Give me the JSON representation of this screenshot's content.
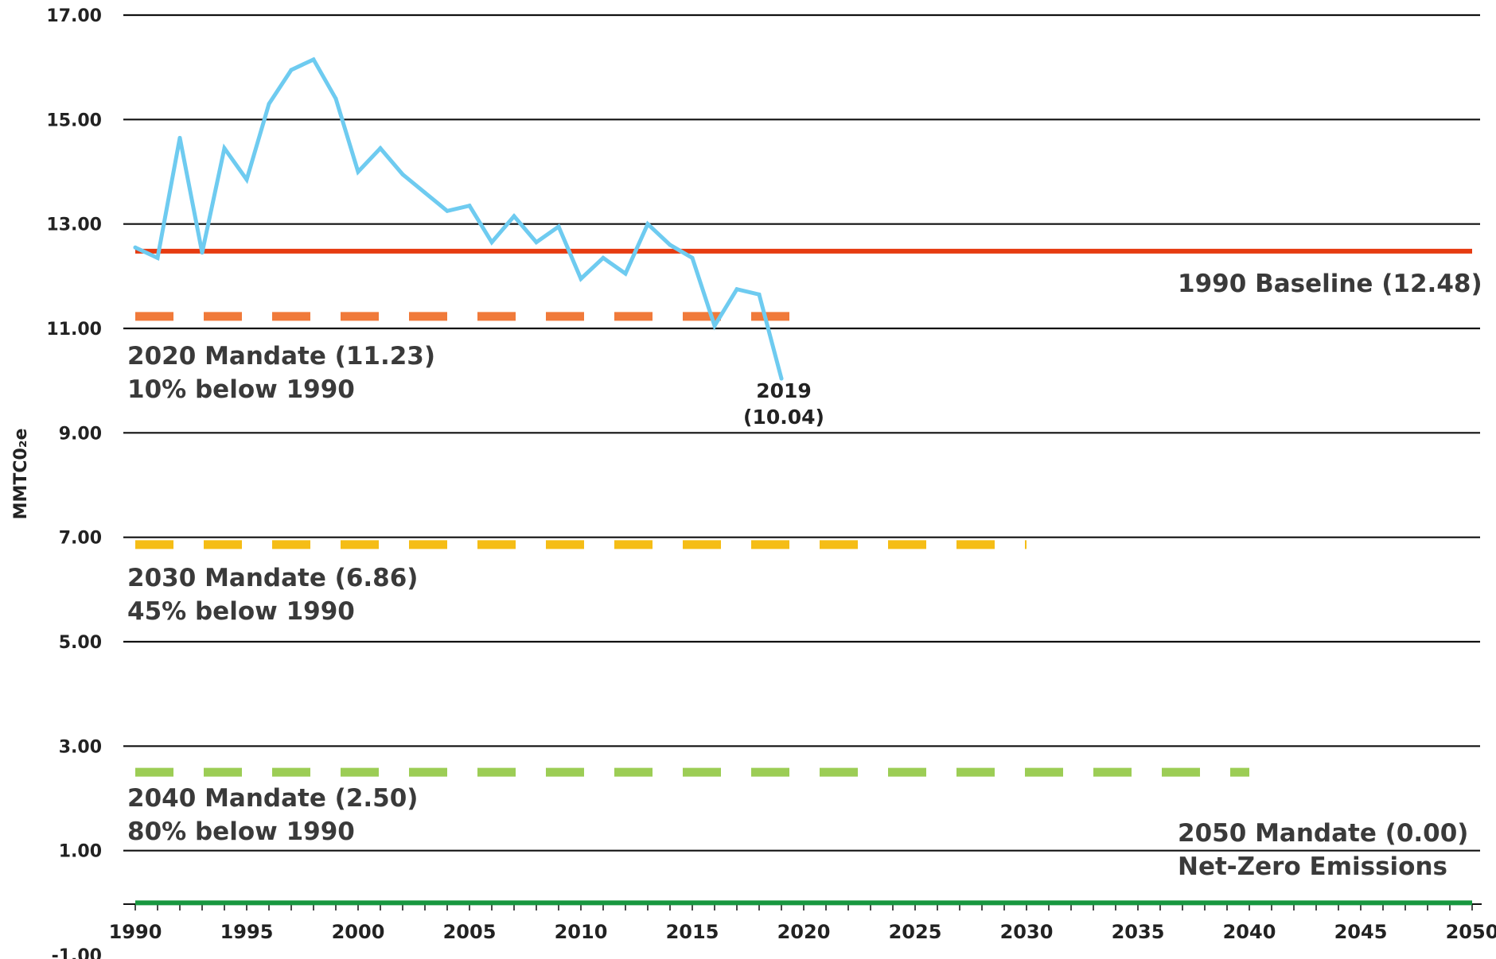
{
  "chart_data": {
    "type": "line",
    "ylabel": "MMTC0₂e",
    "ylim": [
      -1,
      17
    ],
    "xlim": [
      1990,
      2050
    ],
    "grid": true,
    "y_ticks": [
      "17.00",
      "15.00",
      "13.00",
      "11.00",
      "9.00",
      "7.00",
      "5.00",
      "3.00",
      "1.00",
      "-1.00"
    ],
    "y_tick_values": [
      17,
      15,
      13,
      11,
      9,
      7,
      5,
      3,
      1,
      -1
    ],
    "x_ticks": [
      "1990",
      "1995",
      "2000",
      "2005",
      "2010",
      "2015",
      "2020",
      "2025",
      "2030",
      "2035",
      "2040",
      "2045",
      "2050"
    ],
    "x_tick_values": [
      1990,
      1995,
      2000,
      2005,
      2010,
      2015,
      2020,
      2025,
      2030,
      2035,
      2040,
      2045,
      2050
    ],
    "series": [
      {
        "color": "#6ecbf0",
        "x": [
          1990,
          1991,
          1992,
          1993,
          1994,
          1995,
          1996,
          1997,
          1998,
          1999,
          2000,
          2001,
          2002,
          2003,
          2004,
          2005,
          2006,
          2007,
          2008,
          2009,
          2010,
          2011,
          2012,
          2013,
          2014,
          2015,
          2016,
          2017,
          2018,
          2019
        ],
        "y": [
          12.55,
          12.35,
          14.65,
          12.45,
          14.45,
          13.85,
          15.3,
          15.95,
          16.15,
          15.4,
          14.0,
          14.45,
          13.95,
          13.6,
          13.25,
          13.35,
          12.65,
          13.15,
          12.65,
          12.95,
          11.95,
          12.35,
          12.05,
          13.0,
          12.6,
          12.35,
          11.05,
          11.75,
          11.65,
          10.04
        ]
      }
    ],
    "reference_lines": [
      {
        "value": 12.48,
        "from": 1990,
        "to": 2050,
        "style": "solid",
        "color": "#e63b11"
      },
      {
        "value": 11.23,
        "from": 1990,
        "to": 2020,
        "style": "dashed",
        "color": "#f07a3a"
      },
      {
        "value": 6.86,
        "from": 1990,
        "to": 2030,
        "style": "dashed",
        "color": "#f5bd16"
      },
      {
        "value": 2.5,
        "from": 1990,
        "to": 2040,
        "style": "dashed",
        "color": "#9ccd55"
      },
      {
        "value": 0.0,
        "from": 1990,
        "to": 2050,
        "style": "solid",
        "color": "#17973f"
      }
    ],
    "annotations": {
      "baseline": "1990 Baseline (12.48)",
      "m2020_a": "2020 Mandate (11.23)",
      "m2020_b": "10% below 1990",
      "m2030_a": "2030 Mandate (6.86)",
      "m2030_b": "45% below 1990",
      "m2040_a": "2040 Mandate (2.50)",
      "m2040_b": "80% below 1990",
      "m2050_a": "2050 Mandate (0.00)",
      "m2050_b": "Net-Zero Emissions",
      "last_year": "2019",
      "last_value": "(10.04)"
    }
  }
}
